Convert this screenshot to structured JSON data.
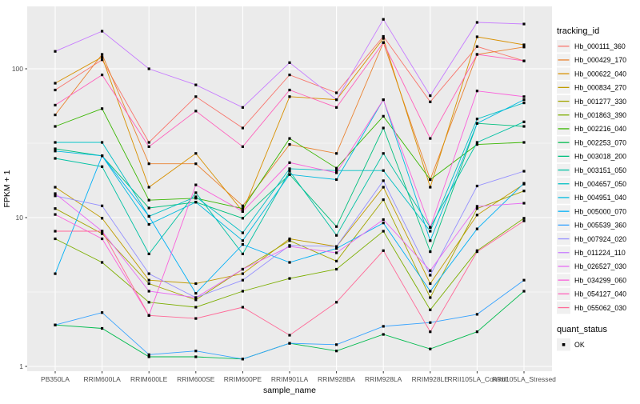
{
  "figure": {
    "xlabel": "sample_name",
    "ylabel": "FPKM + 1",
    "legend_title": "tracking_id",
    "quant_legend_title": "quant_status",
    "quant_legend_item": "OK",
    "panel_bg": "#EBEBEB",
    "grid_color": "#FFFFFF",
    "tick_label_color": "#4D4D4D",
    "marker_color": "#000000"
  },
  "chart_data": {
    "type": "line",
    "y_scale": "log10",
    "yticks": [
      1,
      10,
      100
    ],
    "ylim": [
      1,
      262
    ],
    "grid": true,
    "legend_position": "right",
    "marker": "black-square",
    "quant_status": "OK",
    "x_categories": [
      "PB350LA",
      "RRIM600LA",
      "RRIM600LE",
      "RRIM600SE",
      "RRIM600PE",
      "RRIM901LA",
      "RRIM928BA",
      "RRIM928LA",
      "RRIM928LE",
      "RRII105LA_Control",
      "RRII105LA_Stressed"
    ],
    "series": [
      {
        "name": "Hb_000111_360",
        "color": "#F8766D",
        "values": [
          72,
          115,
          32,
          65,
          40,
          91,
          69,
          165,
          60,
          141,
          113
        ]
      },
      {
        "name": "Hb_000429_170",
        "color": "#EA8331",
        "values": [
          49,
          125,
          23,
          23,
          12,
          31,
          27,
          150,
          18,
          125,
          140
        ]
      },
      {
        "name": "Hb_000622_040",
        "color": "#D89000",
        "values": [
          80,
          120,
          16,
          27,
          11,
          65,
          62,
          160,
          16,
          164,
          145
        ]
      },
      {
        "name": "Hb_000834_270",
        "color": "#C09B00",
        "values": [
          16,
          9.9,
          3.8,
          3.6,
          4.2,
          7.2,
          6.4,
          16,
          3.6,
          10.4,
          16.8
        ]
      },
      {
        "name": "Hb_001277_330",
        "color": "#A3A500",
        "values": [
          11.5,
          7.8,
          3.6,
          2.8,
          4.5,
          7,
          5.1,
          13.2,
          2.9,
          11.5,
          15.1
        ]
      },
      {
        "name": "Hb_001863_390",
        "color": "#7CAE00",
        "values": [
          7.2,
          5,
          2.7,
          2.5,
          3.2,
          3.9,
          4.5,
          8.1,
          2.4,
          6,
          9.9
        ]
      },
      {
        "name": "Hb_002216_040",
        "color": "#39B600",
        "values": [
          41,
          54,
          13.1,
          13.5,
          11.5,
          34,
          21.5,
          48,
          18,
          31,
          32
        ]
      },
      {
        "name": "Hb_002253_070",
        "color": "#00BB4E",
        "values": [
          1.9,
          1.8,
          1.16,
          1.16,
          1.12,
          1.43,
          1.27,
          1.64,
          1.31,
          1.71,
          3.2
        ]
      },
      {
        "name": "Hb_003018_200",
        "color": "#00BF7D",
        "values": [
          29,
          26,
          11.6,
          12.7,
          9.9,
          19.5,
          8.7,
          40,
          5.9,
          43,
          41
        ]
      },
      {
        "name": "Hb_003151_050",
        "color": "#00C1A3",
        "values": [
          25,
          22,
          5.7,
          14.7,
          5.7,
          20.5,
          7.6,
          27,
          8.6,
          32,
          44
        ]
      },
      {
        "name": "Hb_004657_050",
        "color": "#00BFC4",
        "values": [
          32,
          32,
          10.2,
          13.8,
          7.9,
          21.3,
          20.7,
          20.7,
          8.1,
          46,
          59
        ]
      },
      {
        "name": "Hb_004951_040",
        "color": "#00BAE0",
        "values": [
          28,
          26,
          9,
          12.7,
          7,
          19.5,
          18,
          62,
          7,
          43,
          62
        ]
      },
      {
        "name": "Hb_005000_070",
        "color": "#00B0F6",
        "values": [
          4.2,
          26,
          10.2,
          3.1,
          6.6,
          5,
          6.2,
          9.2,
          3.2,
          8.4,
          17
        ]
      },
      {
        "name": "Hb_005539_360",
        "color": "#35A2FF",
        "values": [
          1.9,
          2.3,
          1.2,
          1.27,
          1.12,
          1.43,
          1.4,
          1.86,
          1.97,
          2.24,
          3.8
        ]
      },
      {
        "name": "Hb_007924_020",
        "color": "#9590FF",
        "values": [
          14,
          12,
          4.2,
          2.9,
          3.8,
          6.5,
          6.4,
          17.7,
          4.1,
          16.3,
          20.5
        ]
      },
      {
        "name": "Hb_011224_110",
        "color": "#C77CFF",
        "values": [
          131,
          179,
          100,
          78,
          55,
          110,
          62,
          215,
          66,
          205,
          200
        ]
      },
      {
        "name": "Hb_026527_030",
        "color": "#E76BF3",
        "values": [
          14.5,
          8.1,
          3.2,
          2.9,
          4.5,
          6.4,
          5.8,
          9.7,
          4.4,
          11.9,
          12.5
        ]
      },
      {
        "name": "Hb_034299_060",
        "color": "#FA62DB",
        "values": [
          10.5,
          7.2,
          2.2,
          16.6,
          11,
          23.4,
          20,
          62,
          8.6,
          71,
          65
        ]
      },
      {
        "name": "Hb_054127_040",
        "color": "#FF62BC",
        "values": [
          57,
          91,
          30,
          52,
          30,
          72,
          55,
          150,
          34,
          125,
          113
        ]
      },
      {
        "name": "Hb_055062_030",
        "color": "#FF6A98",
        "values": [
          8.1,
          8.1,
          2.2,
          2.1,
          2.5,
          1.62,
          2.7,
          6,
          1.71,
          5.9,
          9.5
        ]
      }
    ]
  }
}
